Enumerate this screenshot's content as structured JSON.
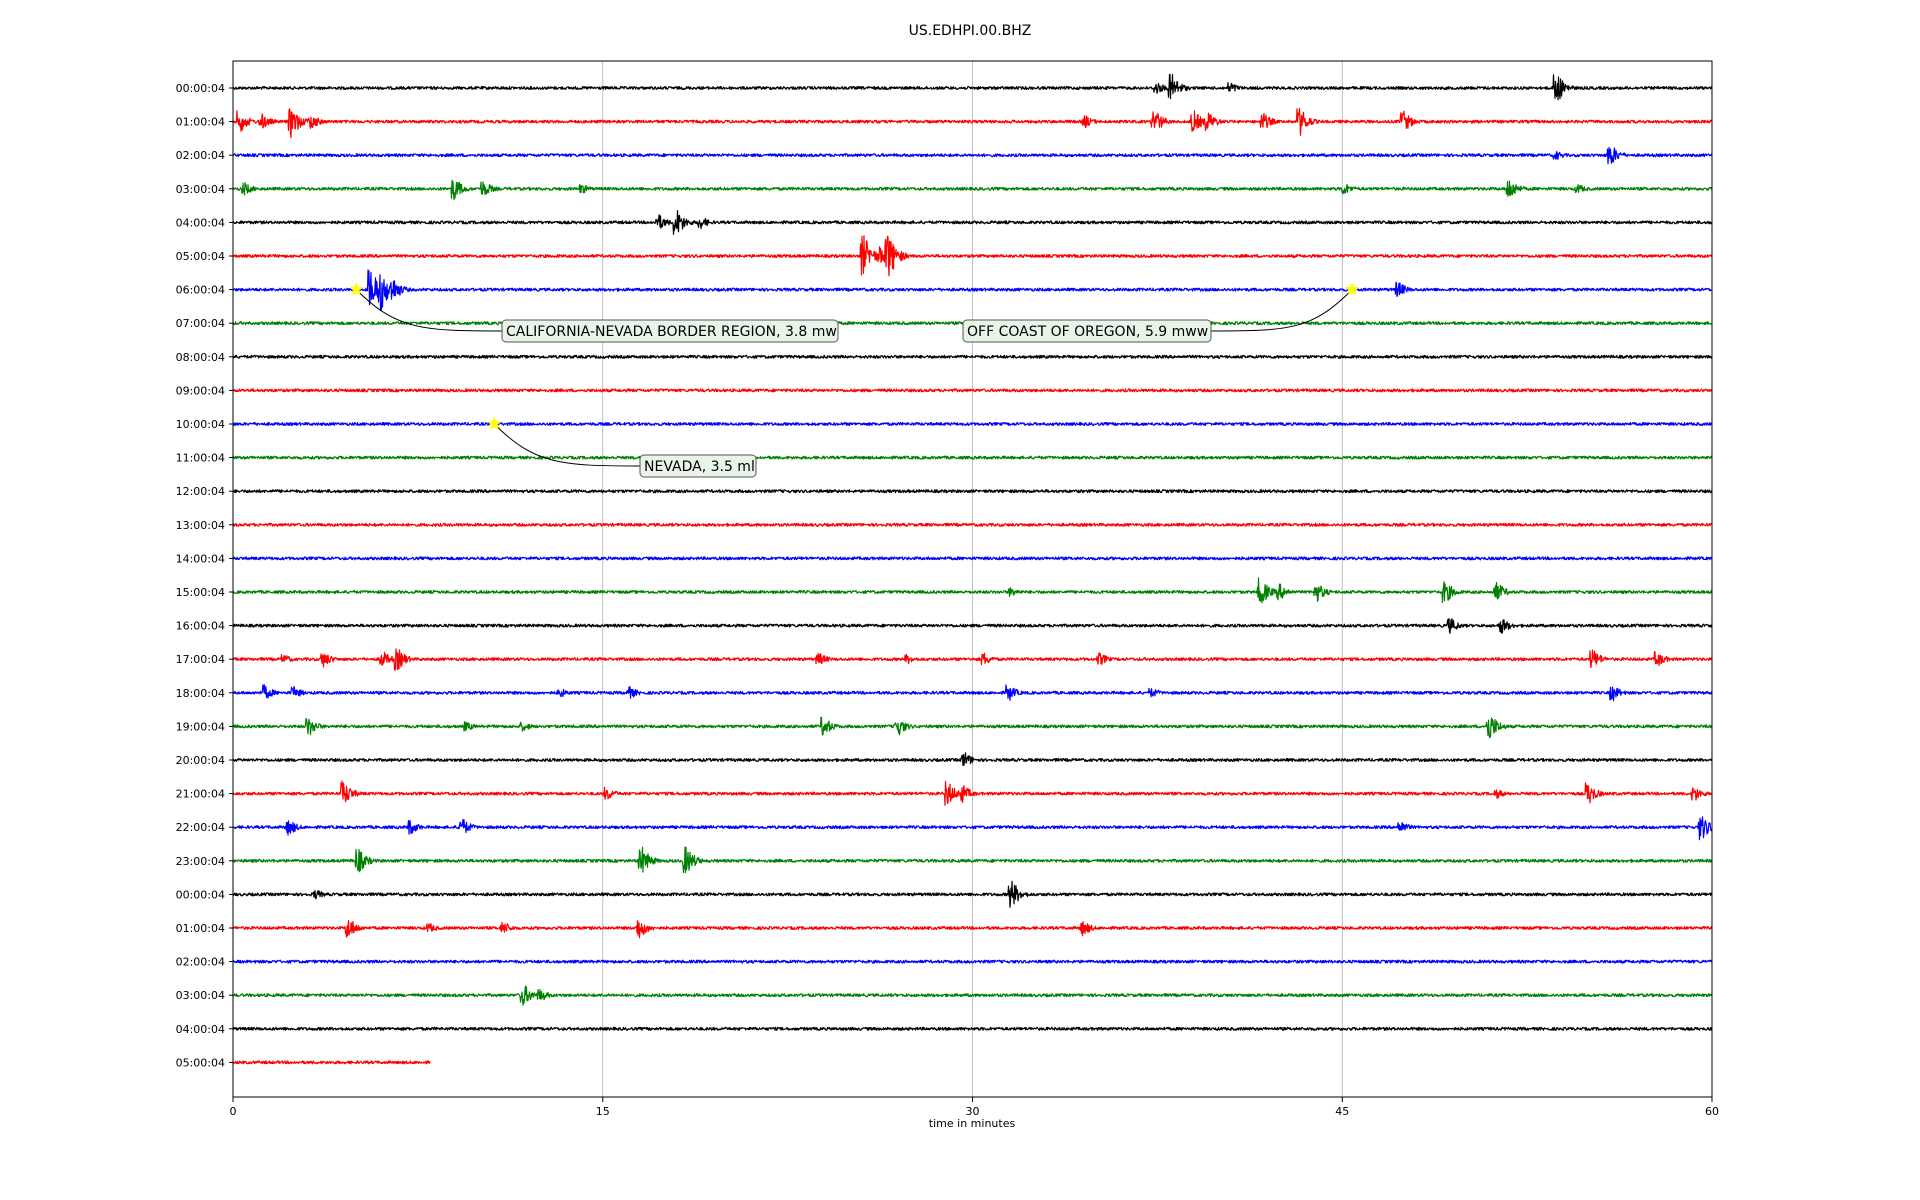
{
  "chart_data": {
    "type": "line",
    "title": "US.EDHPI.00.BHZ",
    "xlabel": "time in minutes",
    "xlim": [
      0,
      60
    ],
    "x_ticks": [
      "0",
      "15",
      "30",
      "45",
      "60"
    ],
    "x_tick_values": [
      0,
      15,
      30,
      45,
      60
    ],
    "grid": "vertical lines at x ticks",
    "row_labels": [
      "00:00:04",
      "01:00:04",
      "02:00:04",
      "03:00:04",
      "04:00:04",
      "05:00:04",
      "06:00:04",
      "07:00:04",
      "08:00:04",
      "09:00:04",
      "10:00:04",
      "11:00:04",
      "12:00:04",
      "13:00:04",
      "14:00:04",
      "15:00:04",
      "16:00:04",
      "17:00:04",
      "18:00:04",
      "19:00:04",
      "20:00:04",
      "21:00:04",
      "22:00:04",
      "23:00:04",
      "00:00:04",
      "01:00:04",
      "02:00:04",
      "03:00:04",
      "04:00:04",
      "05:00:04"
    ],
    "row_colors": [
      "#000000",
      "#ff0000",
      "#0000ff",
      "#008000"
    ],
    "last_row_end_minute": 8.0,
    "noise_level": 0.09,
    "bursts": [
      {
        "row": 0,
        "t": 37.5,
        "amp": 0.4
      },
      {
        "row": 0,
        "t": 38.1,
        "amp": 0.9
      },
      {
        "row": 0,
        "t": 40.5,
        "amp": 0.35
      },
      {
        "row": 0,
        "t": 53.7,
        "amp": 1.0
      },
      {
        "row": 1,
        "t": 0.3,
        "amp": 0.7
      },
      {
        "row": 1,
        "t": 1.2,
        "amp": 0.5
      },
      {
        "row": 1,
        "t": 2.4,
        "amp": 1.0
      },
      {
        "row": 1,
        "t": 3.2,
        "amp": 0.5
      },
      {
        "row": 1,
        "t": 34.6,
        "amp": 0.4
      },
      {
        "row": 1,
        "t": 37.4,
        "amp": 0.8
      },
      {
        "row": 1,
        "t": 39.0,
        "amp": 0.7
      },
      {
        "row": 1,
        "t": 39.6,
        "amp": 0.6
      },
      {
        "row": 1,
        "t": 41.8,
        "amp": 0.6
      },
      {
        "row": 1,
        "t": 43.3,
        "amp": 0.9
      },
      {
        "row": 1,
        "t": 47.5,
        "amp": 0.7
      },
      {
        "row": 2,
        "t": 53.7,
        "amp": 0.3
      },
      {
        "row": 2,
        "t": 55.9,
        "amp": 0.7
      },
      {
        "row": 3,
        "t": 0.5,
        "amp": 0.4
      },
      {
        "row": 3,
        "t": 9.0,
        "amp": 0.7
      },
      {
        "row": 3,
        "t": 10.2,
        "amp": 0.5
      },
      {
        "row": 3,
        "t": 14.2,
        "amp": 0.3
      },
      {
        "row": 3,
        "t": 45.1,
        "amp": 0.4
      },
      {
        "row": 3,
        "t": 51.8,
        "amp": 0.7
      },
      {
        "row": 3,
        "t": 54.6,
        "amp": 0.3
      },
      {
        "row": 4,
        "t": 17.3,
        "amp": 0.5
      },
      {
        "row": 4,
        "t": 18.0,
        "amp": 0.9
      },
      {
        "row": 4,
        "t": 19.0,
        "amp": 0.4
      },
      {
        "row": 5,
        "t": 25.6,
        "amp": 1.3
      },
      {
        "row": 5,
        "t": 26.3,
        "amp": 0.6
      },
      {
        "row": 5,
        "t": 26.6,
        "amp": 1.5
      },
      {
        "row": 6,
        "t": 5.6,
        "amp": 1.3
      },
      {
        "row": 6,
        "t": 6.0,
        "amp": 1.4
      },
      {
        "row": 6,
        "t": 6.5,
        "amp": 0.8
      },
      {
        "row": 6,
        "t": 47.3,
        "amp": 0.5
      },
      {
        "row": 15,
        "t": 41.7,
        "amp": 0.9
      },
      {
        "row": 15,
        "t": 42.5,
        "amp": 0.5
      },
      {
        "row": 15,
        "t": 44.0,
        "amp": 0.6
      },
      {
        "row": 15,
        "t": 49.2,
        "amp": 0.7
      },
      {
        "row": 15,
        "t": 51.3,
        "amp": 0.6
      },
      {
        "row": 15,
        "t": 31.6,
        "amp": 0.3
      },
      {
        "row": 16,
        "t": 49.4,
        "amp": 0.5
      },
      {
        "row": 16,
        "t": 51.5,
        "amp": 0.5
      },
      {
        "row": 17,
        "t": 2.1,
        "amp": 0.3
      },
      {
        "row": 17,
        "t": 3.7,
        "amp": 0.5
      },
      {
        "row": 17,
        "t": 6.1,
        "amp": 0.5
      },
      {
        "row": 17,
        "t": 6.7,
        "amp": 0.7
      },
      {
        "row": 17,
        "t": 23.8,
        "amp": 0.4
      },
      {
        "row": 17,
        "t": 27.4,
        "amp": 0.3
      },
      {
        "row": 17,
        "t": 30.5,
        "amp": 0.4
      },
      {
        "row": 17,
        "t": 35.2,
        "amp": 0.4
      },
      {
        "row": 17,
        "t": 55.2,
        "amp": 0.6
      },
      {
        "row": 17,
        "t": 57.8,
        "amp": 0.5
      },
      {
        "row": 18,
        "t": 1.3,
        "amp": 0.5
      },
      {
        "row": 18,
        "t": 2.5,
        "amp": 0.4
      },
      {
        "row": 18,
        "t": 13.3,
        "amp": 0.3
      },
      {
        "row": 18,
        "t": 16.1,
        "amp": 0.4
      },
      {
        "row": 18,
        "t": 31.5,
        "amp": 0.5
      },
      {
        "row": 18,
        "t": 37.3,
        "amp": 0.3
      },
      {
        "row": 18,
        "t": 56.0,
        "amp": 0.5
      },
      {
        "row": 19,
        "t": 3.1,
        "amp": 0.6
      },
      {
        "row": 19,
        "t": 9.5,
        "amp": 0.3
      },
      {
        "row": 19,
        "t": 11.8,
        "amp": 0.3
      },
      {
        "row": 19,
        "t": 24.0,
        "amp": 0.6
      },
      {
        "row": 19,
        "t": 27.0,
        "amp": 0.6
      },
      {
        "row": 19,
        "t": 51.0,
        "amp": 0.9
      },
      {
        "row": 20,
        "t": 29.7,
        "amp": 0.5
      },
      {
        "row": 21,
        "t": 4.5,
        "amp": 0.8
      },
      {
        "row": 21,
        "t": 15.2,
        "amp": 0.4
      },
      {
        "row": 21,
        "t": 29.0,
        "amp": 0.8
      },
      {
        "row": 21,
        "t": 29.6,
        "amp": 0.6
      },
      {
        "row": 21,
        "t": 51.3,
        "amp": 0.3
      },
      {
        "row": 21,
        "t": 55.0,
        "amp": 0.7
      },
      {
        "row": 21,
        "t": 59.3,
        "amp": 0.5
      },
      {
        "row": 22,
        "t": 2.3,
        "amp": 0.5
      },
      {
        "row": 22,
        "t": 7.2,
        "amp": 0.5
      },
      {
        "row": 22,
        "t": 9.3,
        "amp": 0.6
      },
      {
        "row": 22,
        "t": 47.4,
        "amp": 0.4
      },
      {
        "row": 22,
        "t": 59.6,
        "amp": 0.8
      },
      {
        "row": 23,
        "t": 5.1,
        "amp": 0.8
      },
      {
        "row": 23,
        "t": 16.6,
        "amp": 0.9
      },
      {
        "row": 23,
        "t": 18.4,
        "amp": 0.9
      },
      {
        "row": 24,
        "t": 3.4,
        "amp": 0.3
      },
      {
        "row": 24,
        "t": 31.6,
        "amp": 0.9
      },
      {
        "row": 25,
        "t": 4.7,
        "amp": 0.7
      },
      {
        "row": 25,
        "t": 8.0,
        "amp": 0.3
      },
      {
        "row": 25,
        "t": 11.0,
        "amp": 0.4
      },
      {
        "row": 25,
        "t": 16.5,
        "amp": 0.7
      },
      {
        "row": 25,
        "t": 34.5,
        "amp": 0.5
      },
      {
        "row": 27,
        "t": 11.8,
        "amp": 0.7
      },
      {
        "row": 27,
        "t": 12.5,
        "amp": 0.4
      }
    ],
    "events": [
      {
        "label": "CALIFORNIA-NEVADA BORDER REGION, 3.8 mw",
        "row": 6,
        "t": 5.0
      },
      {
        "label": "OFF COAST OF OREGON, 5.9 mww",
        "row": 6,
        "t": 45.4
      },
      {
        "label": "NEVADA, 3.5 ml",
        "row": 10,
        "t": 10.6
      }
    ],
    "event_marker_color": "#ffff00"
  }
}
